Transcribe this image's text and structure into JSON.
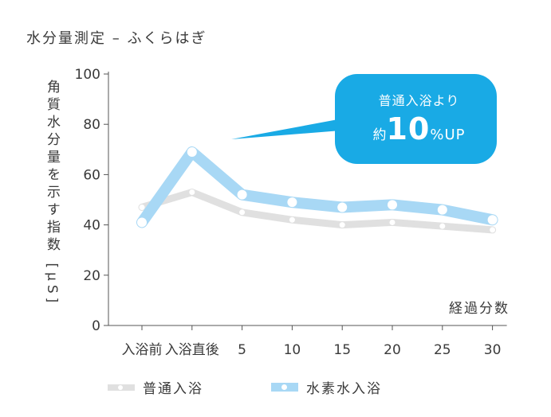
{
  "chart_data": {
    "type": "line",
    "title": "水分量測定 – ふくらはぎ",
    "ylabel": "角質水分量を示す指数 [µS]",
    "xlabel": "経過分数",
    "categories": [
      "入浴前",
      "入浴直後",
      "5",
      "10",
      "15",
      "20",
      "25",
      "30"
    ],
    "ylim": [
      0,
      100
    ],
    "yticks": [
      0,
      20,
      40,
      60,
      80,
      100
    ],
    "grid": false,
    "legend_position": "bottom",
    "series": [
      {
        "name": "普通入浴",
        "values": [
          47,
          53,
          45,
          42,
          40,
          41,
          39.5,
          38
        ],
        "color": "#e0e0e0"
      },
      {
        "name": "水素水入浴",
        "values": [
          41,
          69,
          52,
          49,
          47,
          48,
          46,
          42
        ],
        "color": "#a8d8f5"
      }
    ],
    "annotation": {
      "line1": "普通入浴より",
      "prefix": "約",
      "value": "10",
      "suffix": "%UP",
      "color": "#19aae5"
    }
  }
}
